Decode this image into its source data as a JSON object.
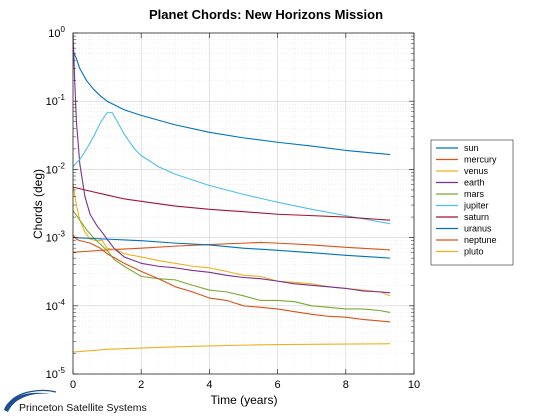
{
  "chart_data": {
    "type": "line",
    "title": "Planet Chords: New Horizons Mission",
    "xlabel": "Time (years)",
    "ylabel": "Chords (deg)",
    "xlim": [
      0,
      10
    ],
    "ylim": [
      1e-05,
      1
    ],
    "yscale": "log",
    "x_ticks": [
      0,
      2,
      4,
      6,
      8,
      10
    ],
    "y_ticks": [
      {
        "base": "10",
        "exp": "-5",
        "value": 1e-05
      },
      {
        "base": "10",
        "exp": "-4",
        "value": 0.0001
      },
      {
        "base": "10",
        "exp": "-3",
        "value": 0.001
      },
      {
        "base": "10",
        "exp": "-2",
        "value": 0.01
      },
      {
        "base": "10",
        "exp": "-1",
        "value": 0.1
      },
      {
        "base": "10",
        "exp": "0",
        "value": 1
      }
    ],
    "grid": true,
    "legend_position": "right",
    "series": [
      {
        "name": "sun",
        "color": "#0072BD",
        "points": [
          [
            0,
            0.55
          ],
          [
            0.1,
            0.42
          ],
          [
            0.2,
            0.3
          ],
          [
            0.4,
            0.2
          ],
          [
            0.6,
            0.15
          ],
          [
            0.8,
            0.12
          ],
          [
            1,
            0.1
          ],
          [
            1.5,
            0.075
          ],
          [
            2,
            0.062
          ],
          [
            3,
            0.045
          ],
          [
            4,
            0.035
          ],
          [
            5,
            0.029
          ],
          [
            6,
            0.025
          ],
          [
            7,
            0.022
          ],
          [
            8,
            0.019
          ],
          [
            9.3,
            0.0165
          ]
        ]
      },
      {
        "name": "mercury",
        "color": "#D95319",
        "points": [
          [
            0,
            0.00061
          ],
          [
            1,
            0.00066
          ],
          [
            2,
            0.0007
          ],
          [
            3,
            0.00075
          ],
          [
            4,
            0.00079
          ],
          [
            5,
            0.00083
          ],
          [
            5.5,
            0.00085
          ],
          [
            6,
            0.00083
          ],
          [
            7,
            0.00078
          ],
          [
            8,
            0.00072
          ],
          [
            9.3,
            0.00066
          ]
        ]
      },
      {
        "name": "venus",
        "color": "#EDB120",
        "points": [
          [
            0,
            0.006
          ],
          [
            0.1,
            0.003
          ],
          [
            0.2,
            0.0018
          ],
          [
            0.35,
            0.0012
          ],
          [
            0.5,
            0.00095
          ],
          [
            0.7,
            0.0009
          ],
          [
            0.85,
            0.00092
          ],
          [
            1,
            0.0007
          ],
          [
            1.3,
            0.00065
          ],
          [
            1.5,
            0.00058
          ],
          [
            2,
            0.00052
          ],
          [
            2.5,
            0.00046
          ],
          [
            3,
            0.00042
          ],
          [
            3.5,
            0.00038
          ],
          [
            4,
            0.00036
          ],
          [
            4.5,
            0.00032
          ],
          [
            5,
            0.00028
          ],
          [
            5.5,
            0.00027
          ],
          [
            6,
            0.00023
          ],
          [
            6.5,
            0.00022
          ],
          [
            7,
            0.00021
          ],
          [
            7.5,
            0.00019
          ],
          [
            8,
            0.00018
          ],
          [
            8.5,
            0.00017
          ],
          [
            9,
            0.00016
          ],
          [
            9.3,
            0.00014
          ]
        ]
      },
      {
        "name": "earth",
        "color": "#7E2F8E",
        "points": [
          [
            0,
            1.0
          ],
          [
            0.05,
            0.2
          ],
          [
            0.1,
            0.05
          ],
          [
            0.2,
            0.012
          ],
          [
            0.35,
            0.004
          ],
          [
            0.5,
            0.0022
          ],
          [
            0.7,
            0.0015
          ],
          [
            0.85,
            0.0012
          ],
          [
            1,
            0.00095
          ],
          [
            1.2,
            0.0007
          ],
          [
            1.5,
            0.00052
          ],
          [
            2,
            0.00042
          ],
          [
            2.5,
            0.00038
          ],
          [
            3,
            0.00036
          ],
          [
            3.5,
            0.00033
          ],
          [
            4,
            0.00031
          ],
          [
            4.5,
            0.00028
          ],
          [
            5,
            0.00026
          ],
          [
            5.5,
            0.00025
          ],
          [
            6,
            0.00023
          ],
          [
            6.5,
            0.00021
          ],
          [
            7,
            0.0002
          ],
          [
            7.5,
            0.00019
          ],
          [
            8,
            0.00018
          ],
          [
            8.5,
            0.000165
          ],
          [
            9,
            0.00016
          ],
          [
            9.3,
            0.000155
          ]
        ]
      },
      {
        "name": "mars",
        "color": "#77AC30",
        "points": [
          [
            0,
            0.0025
          ],
          [
            0.2,
            0.0018
          ],
          [
            0.4,
            0.0013
          ],
          [
            0.6,
            0.001
          ],
          [
            0.8,
            0.0008
          ],
          [
            1,
            0.00065
          ],
          [
            1.2,
            0.00048
          ],
          [
            1.5,
            0.00038
          ],
          [
            1.8,
            0.00031
          ],
          [
            2,
            0.00027
          ],
          [
            2.5,
            0.00025
          ],
          [
            3,
            0.00024
          ],
          [
            3.5,
            0.0002
          ],
          [
            4,
            0.00017
          ],
          [
            4.5,
            0.00016
          ],
          [
            5,
            0.00014
          ],
          [
            5.5,
            0.00012
          ],
          [
            6,
            0.00012
          ],
          [
            6.5,
            0.000115
          ],
          [
            7,
            0.0001
          ],
          [
            7.5,
            9.5e-05
          ],
          [
            8,
            9e-05
          ],
          [
            8.5,
            9e-05
          ],
          [
            9,
            8.5e-05
          ],
          [
            9.3,
            8e-05
          ]
        ]
      },
      {
        "name": "jupiter",
        "color": "#4DBEEE",
        "points": [
          [
            0,
            0.011
          ],
          [
            0.2,
            0.014
          ],
          [
            0.4,
            0.02
          ],
          [
            0.6,
            0.03
          ],
          [
            0.8,
            0.048
          ],
          [
            1,
            0.068
          ],
          [
            1.15,
            0.068
          ],
          [
            1.3,
            0.05
          ],
          [
            1.5,
            0.033
          ],
          [
            1.8,
            0.02
          ],
          [
            2,
            0.016
          ],
          [
            2.5,
            0.011
          ],
          [
            3,
            0.0085
          ],
          [
            4,
            0.0058
          ],
          [
            5,
            0.0043
          ],
          [
            6,
            0.0033
          ],
          [
            7,
            0.0026
          ],
          [
            8,
            0.0021
          ],
          [
            9.3,
            0.0016
          ]
        ]
      },
      {
        "name": "saturn",
        "color": "#A2142F",
        "points": [
          [
            0,
            0.0055
          ],
          [
            0.5,
            0.0048
          ],
          [
            1,
            0.0042
          ],
          [
            1.5,
            0.0037
          ],
          [
            2,
            0.0034
          ],
          [
            3,
            0.0029
          ],
          [
            4,
            0.0026
          ],
          [
            5,
            0.0024
          ],
          [
            6,
            0.0022
          ],
          [
            7,
            0.0021
          ],
          [
            8,
            0.002
          ],
          [
            9.3,
            0.0018
          ]
        ]
      },
      {
        "name": "uranus",
        "color": "#0072BD",
        "points": [
          [
            0,
            0.001
          ],
          [
            1,
            0.00095
          ],
          [
            2,
            0.0009
          ],
          [
            3,
            0.00083
          ],
          [
            4,
            0.00078
          ],
          [
            5,
            0.0007
          ],
          [
            6,
            0.00065
          ],
          [
            7,
            0.0006
          ],
          [
            8,
            0.00055
          ],
          [
            9.3,
            0.0005
          ]
        ]
      },
      {
        "name": "neptune",
        "color": "#D95319",
        "points": [
          [
            0,
            0.0011
          ],
          [
            0.1,
            0.00095
          ],
          [
            0.2,
            0.0009
          ],
          [
            0.3,
            0.00088
          ],
          [
            0.5,
            0.00083
          ],
          [
            0.8,
            0.0007
          ],
          [
            1,
            0.00058
          ],
          [
            1.3,
            0.00048
          ],
          [
            1.5,
            0.00042
          ],
          [
            2,
            0.00032
          ],
          [
            2.5,
            0.00025
          ],
          [
            3,
            0.00019
          ],
          [
            3.5,
            0.00016
          ],
          [
            4,
            0.00013
          ],
          [
            4.5,
            0.00012
          ],
          [
            5,
            0.0001
          ],
          [
            5.5,
            9.5e-05
          ],
          [
            6,
            9e-05
          ],
          [
            6.5,
            8.2e-05
          ],
          [
            7,
            7.5e-05
          ],
          [
            7.5,
            7e-05
          ],
          [
            8,
            6.8e-05
          ],
          [
            8.5,
            6.3e-05
          ],
          [
            9,
            6e-05
          ],
          [
            9.3,
            5.8e-05
          ]
        ]
      },
      {
        "name": "pluto",
        "color": "#EDB120",
        "points": [
          [
            0,
            2.1e-05
          ],
          [
            1,
            2.3e-05
          ],
          [
            2,
            2.4e-05
          ],
          [
            3,
            2.5e-05
          ],
          [
            4,
            2.58e-05
          ],
          [
            5,
            2.65e-05
          ],
          [
            6,
            2.7e-05
          ],
          [
            7,
            2.72e-05
          ],
          [
            8,
            2.75e-05
          ],
          [
            9.3,
            2.78e-05
          ]
        ]
      }
    ]
  },
  "branding": {
    "company": "Princeton Satellite Systems",
    "logo_color": "#1d4f91"
  }
}
